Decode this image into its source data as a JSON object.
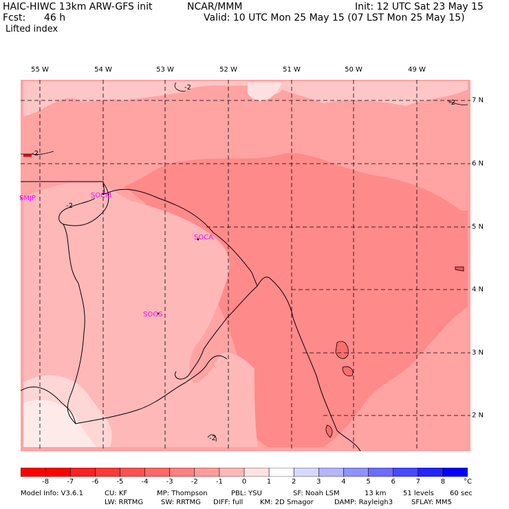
{
  "header": {
    "model": "HAIC-HIWC 13km ARW-GFS init",
    "center": "NCAR/MMM",
    "init": "Init: 12 UTC Sat 23 May 15",
    "fcst_label": "Fcst:",
    "fcst_value": "46 h",
    "valid": "Valid: 10 UTC Mon 25 May 15 (07 LST Mon 25 May 15)",
    "field": "Lifted index"
  },
  "map": {
    "longitudes": [
      "55 W",
      "54 W",
      "53 W",
      "52 W",
      "51 W",
      "50 W",
      "49 W"
    ],
    "latitudes": [
      "7 N",
      "6 N",
      "5 N",
      "4 N",
      "3 N",
      "2 N"
    ],
    "stations": [
      "SMJP",
      "SOCM",
      "SOCA",
      "SOOS"
    ],
    "contour_labels": [
      "-2",
      "-2",
      "-2",
      "-2",
      "-2"
    ]
  },
  "colorbar": {
    "labels": [
      "-8",
      "-7",
      "-6",
      "-5",
      "-4",
      "-3",
      "-2",
      "-1",
      "0",
      "1",
      "2",
      "3",
      "4",
      "5",
      "6",
      "7",
      "8"
    ],
    "unit": "°C",
    "colors": [
      "#ff0000",
      "#ff2020",
      "#ff3838",
      "#ff5050",
      "#ff6868",
      "#ff8080",
      "#ff9c9c",
      "#ffb8b8",
      "#ffe2e2",
      "#ffffff",
      "#d8d8ff",
      "#b4b4ff",
      "#9090ff",
      "#6c6cff",
      "#4848ff",
      "#2424ff",
      "#0000ff"
    ]
  },
  "footer": {
    "line1": [
      "Model Info: V3.6.1",
      "CU: KF",
      "MP: Thompson",
      "PBL: YSU",
      "SF: Noah LSM",
      "13 km",
      "51 levels",
      "60 sec"
    ],
    "line2": [
      "LW: RRTMG",
      "SW: RRTMG",
      "DIFF: full",
      "KM: 2D Smagor",
      "DAMP: Rayleigh3",
      "SFLAY: MM5"
    ]
  }
}
